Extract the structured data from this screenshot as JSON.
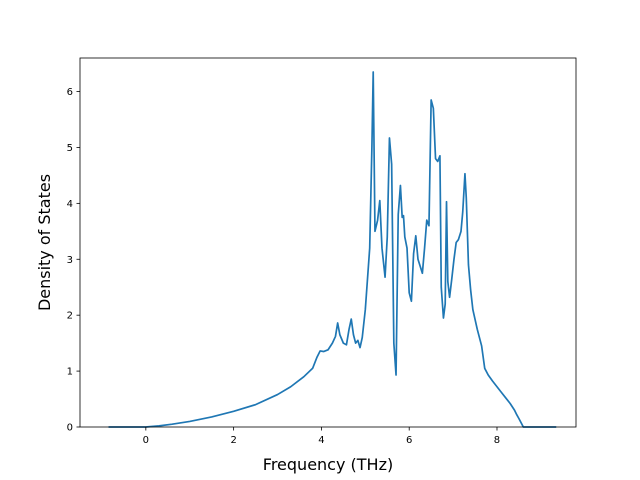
{
  "chart_data": {
    "type": "line",
    "title": "",
    "xlabel": "Frequency (THz)",
    "ylabel": "Density of States",
    "xlim": [
      -1.5,
      9.8
    ],
    "ylim": [
      0,
      6.6
    ],
    "xticks": [
      0,
      2,
      4,
      6,
      8
    ],
    "yticks": [
      0,
      1,
      2,
      3,
      4,
      5,
      6
    ],
    "grid": false,
    "legend": "none",
    "color": "#1f77b4",
    "series": [
      {
        "x": [
          -0.85,
          -0.5,
          0,
          0.3,
          0.6,
          1.0,
          1.5,
          2.0,
          2.5,
          3.0,
          3.3,
          3.6,
          3.8,
          3.9,
          3.97,
          4.05,
          4.15,
          4.25,
          4.32,
          4.37,
          4.42,
          4.5,
          4.57,
          4.63,
          4.68,
          4.73,
          4.78,
          4.83,
          4.88,
          4.93,
          5.0,
          5.1,
          5.15,
          5.18,
          5.22,
          5.28,
          5.33,
          5.38,
          5.45,
          5.5,
          5.55,
          5.6,
          5.65,
          5.7,
          5.75,
          5.8,
          5.84,
          5.87,
          5.9,
          5.95,
          6.0,
          6.05,
          6.1,
          6.15,
          6.2,
          6.3,
          6.35,
          6.4,
          6.45,
          6.5,
          6.55,
          6.6,
          6.65,
          6.7,
          6.73,
          6.78,
          6.82,
          6.85,
          6.88,
          6.92,
          6.97,
          7.02,
          7.07,
          7.12,
          7.18,
          7.22,
          7.27,
          7.3,
          7.35,
          7.4,
          7.45,
          7.55,
          7.65,
          7.72,
          7.8,
          7.9,
          8.0,
          8.1,
          8.2,
          8.3,
          8.4,
          8.45,
          8.5,
          8.6,
          8.8,
          9.0,
          9.35
        ],
        "y": [
          0,
          0,
          0,
          0.02,
          0.05,
          0.1,
          0.18,
          0.28,
          0.4,
          0.58,
          0.72,
          0.9,
          1.05,
          1.25,
          1.36,
          1.35,
          1.38,
          1.5,
          1.62,
          1.86,
          1.65,
          1.5,
          1.47,
          1.75,
          1.93,
          1.65,
          1.5,
          1.55,
          1.42,
          1.6,
          2.1,
          3.2,
          5.0,
          6.35,
          3.5,
          3.7,
          4.05,
          3.2,
          2.68,
          3.4,
          5.17,
          4.7,
          1.5,
          0.93,
          3.8,
          4.32,
          3.75,
          3.78,
          3.4,
          3.2,
          2.4,
          2.25,
          3.1,
          3.42,
          3.0,
          2.75,
          3.2,
          3.7,
          3.6,
          5.85,
          5.7,
          4.8,
          4.75,
          4.85,
          2.5,
          1.95,
          2.2,
          4.03,
          2.6,
          2.32,
          2.65,
          3.0,
          3.3,
          3.35,
          3.5,
          3.85,
          4.53,
          4.1,
          2.9,
          2.45,
          2.1,
          1.75,
          1.45,
          1.05,
          0.93,
          0.82,
          0.72,
          0.62,
          0.52,
          0.42,
          0.3,
          0.22,
          0.15,
          0,
          0,
          0,
          0
        ]
      }
    ]
  }
}
